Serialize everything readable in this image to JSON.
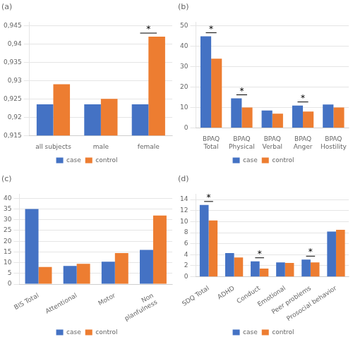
{
  "chart_data": [
    {
      "type": "bar",
      "title": "(a)",
      "categories": [
        "all subjects",
        "male",
        "female"
      ],
      "series": [
        {
          "name": "case",
          "color": "#4472c4",
          "values": [
            0.9235,
            0.9235,
            0.9235
          ]
        },
        {
          "name": "control",
          "color": "#ed7d31",
          "values": [
            0.929,
            0.925,
            0.942
          ]
        }
      ],
      "ylim": [
        0.915,
        0.946
      ],
      "yticks": [
        {
          "value": 0.915,
          "label": "0,915"
        },
        {
          "value": 0.92,
          "label": "0,92"
        },
        {
          "value": 0.925,
          "label": "0,925"
        },
        {
          "value": 0.93,
          "label": "0,93"
        },
        {
          "value": 0.935,
          "label": "0,935"
        },
        {
          "value": 0.94,
          "label": "0,94"
        },
        {
          "value": 0.945,
          "label": "0,945"
        }
      ],
      "grid": "y",
      "legend": "lower center",
      "annotations": [
        {
          "text": "*",
          "x": "female"
        }
      ]
    },
    {
      "type": "bar",
      "title": "(b)",
      "categories": [
        "BPAQ\nTotal",
        "BPAQ\nPhysical",
        "BPAQ\nVerbal",
        "BPAQ\nAnger",
        "BPAQ\nHostility"
      ],
      "series": [
        {
          "name": "case",
          "color": "#4472c4",
          "values": [
            45,
            14.5,
            8.5,
            11,
            11.5
          ]
        },
        {
          "name": "control",
          "color": "#ed7d31",
          "values": [
            34,
            10,
            7,
            8,
            10
          ]
        }
      ],
      "ylim": [
        0,
        52
      ],
      "yticks": [
        0,
        10,
        20,
        30,
        40,
        50
      ],
      "grid": "y",
      "legend": "lower center",
      "annotations": [
        {
          "text": "*",
          "x": "BPAQ\nTotal"
        },
        {
          "text": "*",
          "x": "BPAQ\nPhysical"
        },
        {
          "text": "*",
          "x": "BPAQ\nAnger"
        }
      ]
    },
    {
      "type": "bar",
      "title": "(c)",
      "categories": [
        "BIS Total",
        "Attentional",
        "Motor",
        "Non\nplanfulness"
      ],
      "series": [
        {
          "name": "case",
          "color": "#4472c4",
          "values": [
            35,
            8.5,
            10.5,
            16
          ]
        },
        {
          "name": "control",
          "color": "#ed7d31",
          "values": [
            8,
            9.5,
            14.5,
            32
          ]
        }
      ],
      "ylim": [
        0,
        42
      ],
      "yticks": [
        0,
        5,
        10,
        15,
        20,
        25,
        30,
        35,
        40
      ],
      "grid": "y",
      "legend": "lower center"
    },
    {
      "type": "bar",
      "title": "(d)",
      "categories": [
        "SDQ Total",
        "ADHD",
        "Conduct",
        "Emotional",
        "Peer problems",
        "Prosocial behavior"
      ],
      "series": [
        {
          "name": "case",
          "color": "#4472c4",
          "values": [
            13,
            4.3,
            2.8,
            2.6,
            3.1,
            8.2
          ]
        },
        {
          "name": "control",
          "color": "#ed7d31",
          "values": [
            10.2,
            3.5,
            1.5,
            2.5,
            2.6,
            8.5
          ]
        }
      ],
      "ylim": [
        0,
        15
      ],
      "yticks": [
        0,
        2,
        4,
        6,
        8,
        10,
        12,
        14
      ],
      "grid": "y",
      "legend": "lower center",
      "annotations": [
        {
          "text": "*",
          "x": "SDQ Total"
        },
        {
          "text": "*",
          "x": "Conduct"
        },
        {
          "text": "*",
          "x": "Peer problems"
        }
      ]
    }
  ]
}
